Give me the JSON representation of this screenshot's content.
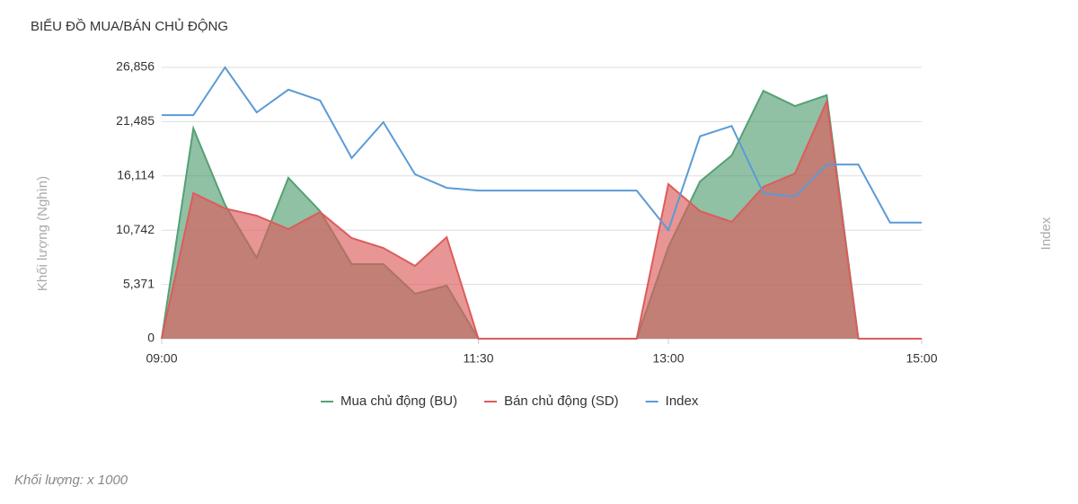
{
  "chart_data": {
    "type": "area-line",
    "title": "BIỂU ĐỒ MUA/BÁN CHỦ ĐỘNG",
    "y_label": "Khối lượng (Nghìn)",
    "y2_label": "Index",
    "note": "Khối lượng: x 1000",
    "categories": [
      "09:00",
      null,
      null,
      null,
      null,
      null,
      null,
      null,
      null,
      null,
      "11:30",
      null,
      null,
      null,
      null,
      null,
      "13:00",
      null,
      null,
      null,
      null,
      null,
      null,
      null,
      "15:00"
    ],
    "ylim": [
      0,
      26856
    ],
    "yticks": [
      0,
      {
        "value": 5371,
        "label": "5,371"
      },
      {
        "value": 10742,
        "label": "10,742"
      },
      {
        "value": 16114,
        "label": "16,114"
      },
      {
        "value": 21485,
        "label": "21,485"
      },
      {
        "value": 26856,
        "label": "26,856"
      }
    ],
    "y2lim": [
      1240,
      1290
    ],
    "grid": true,
    "legend": "bottom",
    "series": [
      {
        "name": "Mua chủ động (BU)",
        "color": "#55a074",
        "values": [
          0,
          20810,
          13250,
          8000,
          15920,
          12630,
          7380,
          7380,
          4450,
          5250,
          0,
          0,
          0,
          0,
          0,
          0,
          9070,
          15560,
          18140,
          24540,
          23030,
          24100,
          0,
          0,
          0
        ]
      },
      {
        "name": "Bán chủ động (SD)",
        "color": "#dc5c5c",
        "values": [
          0,
          14410,
          12890,
          12180,
          10850,
          12540,
          9960,
          8980,
          7200,
          10050,
          0,
          0,
          0,
          0,
          0,
          0,
          15300,
          12630,
          11560,
          15030,
          16360,
          23480,
          0,
          0,
          0
        ]
      },
      {
        "name": "Index",
        "color": "#5b9bd5",
        "axis": "y2",
        "values": [
          1281.2,
          1281.2,
          1290,
          1281.7,
          1285.9,
          1283.9,
          1273.3,
          1279.9,
          1270.3,
          1267.8,
          1267.3,
          1267.3,
          1267.3,
          1267.3,
          1267.3,
          1267.3,
          1260,
          1277.3,
          1279.2,
          1266.8,
          1266.2,
          1272.1,
          1272.1,
          1261.4,
          1261.4
        ]
      }
    ]
  }
}
